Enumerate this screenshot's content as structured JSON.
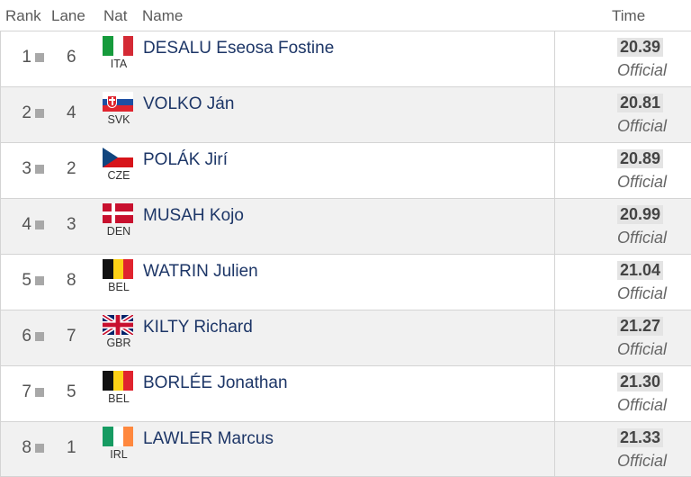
{
  "header": {
    "rank": "Rank",
    "lane": "Lane",
    "nat": "Nat",
    "name": "Name",
    "time": "Time"
  },
  "rows": [
    {
      "rank": "1",
      "lane": "6",
      "nat": "ITA",
      "flag": "italy-flag-icon",
      "name": "DESALU Eseosa Fostine",
      "time": "20.39",
      "status": "Official"
    },
    {
      "rank": "2",
      "lane": "4",
      "nat": "SVK",
      "flag": "slovakia-flag-icon",
      "name": "VOLKO Ján",
      "time": "20.81",
      "status": "Official"
    },
    {
      "rank": "3",
      "lane": "2",
      "nat": "CZE",
      "flag": "czech-flag-icon",
      "name": "POLÁK Jirí",
      "time": "20.89",
      "status": "Official"
    },
    {
      "rank": "4",
      "lane": "3",
      "nat": "DEN",
      "flag": "denmark-flag-icon",
      "name": "MUSAH Kojo",
      "time": "20.99",
      "status": "Official"
    },
    {
      "rank": "5",
      "lane": "8",
      "nat": "BEL",
      "flag": "belgium-flag-icon",
      "name": "WATRIN Julien",
      "time": "21.04",
      "status": "Official"
    },
    {
      "rank": "6",
      "lane": "7",
      "nat": "GBR",
      "flag": "uk-flag-icon",
      "name": "KILTY Richard",
      "time": "21.27",
      "status": "Official"
    },
    {
      "rank": "7",
      "lane": "5",
      "nat": "BEL",
      "flag": "belgium-flag-icon",
      "name": "BORLÉE Jonathan",
      "time": "21.30",
      "status": "Official"
    },
    {
      "rank": "8",
      "lane": "1",
      "nat": "IRL",
      "flag": "ireland-flag-icon",
      "name": "LAWLER Marcus",
      "time": "21.33",
      "status": "Official"
    }
  ]
}
